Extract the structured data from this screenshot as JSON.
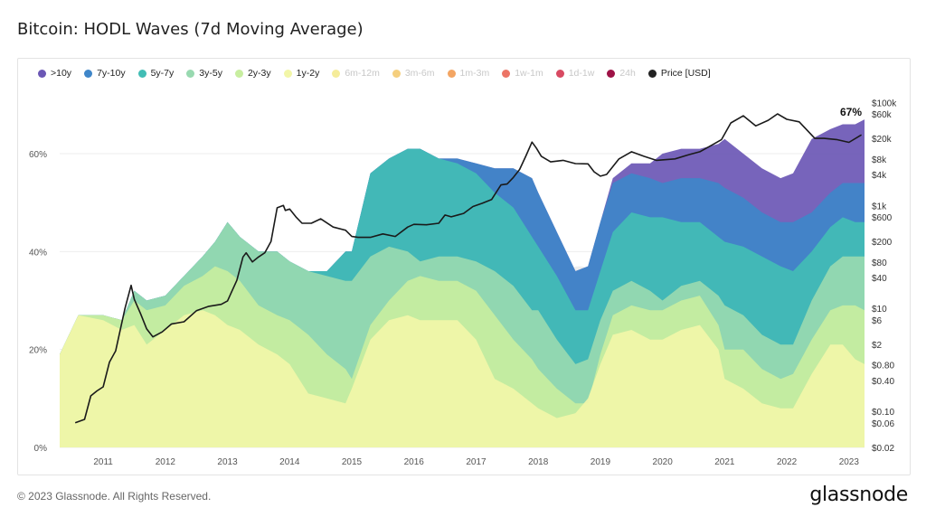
{
  "title": "Bitcoin: HODL Waves (7d Moving Average)",
  "footer": "© 2023 Glassnode. All Rights Reserved.",
  "brand": "glassnode",
  "watermark": "glassnode",
  "legend": [
    {
      "label": ">10y",
      "color": "#6b57b5",
      "active": true
    },
    {
      "label": "7y-10y",
      "color": "#3f86c9",
      "active": true
    },
    {
      "label": "5y-7y",
      "color": "#42bdb5",
      "active": true
    },
    {
      "label": "3y-5y",
      "color": "#98d9b0",
      "active": true
    },
    {
      "label": "2y-3y",
      "color": "#c8eea0",
      "active": true
    },
    {
      "label": "1y-2y",
      "color": "#f2f6a8",
      "active": true
    },
    {
      "label": "6m-12m",
      "color": "#f5ec9a",
      "active": false
    },
    {
      "label": "3m-6m",
      "color": "#f5cf7e",
      "active": false
    },
    {
      "label": "1m-3m",
      "color": "#f3a563",
      "active": false
    },
    {
      "label": "1w-1m",
      "color": "#ec7566",
      "active": false
    },
    {
      "label": "1d-1w",
      "color": "#d84a62",
      "active": false
    },
    {
      "label": "24h",
      "color": "#9e1246",
      "active": false
    },
    {
      "label": "Price [USD]",
      "color": "#222222",
      "active": true
    }
  ],
  "chart_data": {
    "type": "area",
    "stacked": true,
    "x_unit": "year",
    "x_ticks": [
      "2011",
      "2012",
      "2013",
      "2014",
      "2015",
      "2016",
      "2017",
      "2018",
      "2019",
      "2020",
      "2021",
      "2022",
      "2023"
    ],
    "xlim": [
      2010.3,
      2023.25
    ],
    "left_axis": {
      "ticks": [
        "0%",
        "20%",
        "40%",
        "60%"
      ],
      "ylim": [
        0,
        72
      ]
    },
    "right_axis": {
      "scale": "log",
      "ticks": [
        "$0.02",
        "$0.06",
        "$0.10",
        "$0.40",
        "$0.80",
        "$2",
        "$6",
        "$10",
        "$40",
        "$80",
        "$200",
        "$600",
        "$1k",
        "$4k",
        "$8k",
        "$20k",
        "$60k",
        "$100k"
      ],
      "tick_values": [
        0.02,
        0.06,
        0.1,
        0.4,
        0.8,
        2,
        6,
        10,
        40,
        80,
        200,
        600,
        1000,
        4000,
        8000,
        20000,
        60000,
        100000
      ],
      "ylim": [
        0.02,
        140000
      ]
    },
    "annotation": "67%",
    "band_x": [
      2010.3,
      2010.6,
      2011.0,
      2011.3,
      2011.5,
      2011.7,
      2012.0,
      2012.3,
      2012.6,
      2012.8,
      2013.0,
      2013.2,
      2013.5,
      2013.8,
      2014.0,
      2014.3,
      2014.6,
      2014.9,
      2015.0,
      2015.3,
      2015.6,
      2015.9,
      2016.1,
      2016.4,
      2016.7,
      2017.0,
      2017.3,
      2017.6,
      2017.9,
      2018.0,
      2018.3,
      2018.6,
      2018.8,
      2019.0,
      2019.2,
      2019.5,
      2019.8,
      2020.0,
      2020.3,
      2020.6,
      2020.9,
      2021.0,
      2021.3,
      2021.6,
      2021.9,
      2022.1,
      2022.4,
      2022.7,
      2022.9,
      2023.1,
      2023.25
    ],
    "series": [
      {
        "name": "1y-2y",
        "values": [
          19,
          27,
          26,
          24,
          25,
          21,
          24,
          27,
          28,
          27,
          25,
          24,
          21,
          19,
          17,
          11,
          10,
          9,
          12,
          22,
          26,
          27,
          26,
          26,
          26,
          22,
          14,
          12,
          9,
          8,
          6,
          7,
          10,
          17,
          23,
          24,
          22,
          22,
          24,
          25,
          20,
          14,
          12,
          9,
          8,
          8,
          15,
          21,
          21,
          18,
          17
        ]
      },
      {
        "name": "2y-3y",
        "values": [
          19,
          27,
          27,
          26,
          30,
          28,
          29,
          33,
          35,
          37,
          36,
          34,
          29,
          27,
          26,
          23,
          19,
          16,
          14,
          25,
          30,
          34,
          35,
          34,
          34,
          32,
          27,
          22,
          18,
          16,
          12,
          9,
          9,
          19,
          27,
          29,
          28,
          28,
          30,
          31,
          25,
          20,
          20,
          16,
          14,
          15,
          22,
          28,
          29,
          29,
          28
        ]
      },
      {
        "name": "3y-5y",
        "values": [
          19,
          27,
          27,
          26,
          32,
          30,
          31,
          35,
          39,
          42,
          46,
          43,
          40,
          40,
          38,
          36,
          35,
          34,
          34,
          39,
          41,
          40,
          38,
          39,
          39,
          38,
          36,
          33,
          28,
          28,
          22,
          17,
          18,
          26,
          32,
          34,
          32,
          30,
          33,
          34,
          31,
          29,
          27,
          23,
          21,
          21,
          30,
          37,
          39,
          39,
          39
        ]
      },
      {
        "name": "5y-7y",
        "values": [
          19,
          27,
          27,
          26,
          32,
          30,
          31,
          35,
          39,
          42,
          46,
          43,
          40,
          40,
          38,
          36,
          36,
          40,
          40,
          56,
          59,
          61,
          61,
          59,
          58,
          56,
          52,
          49,
          43,
          41,
          35,
          28,
          28,
          36,
          44,
          48,
          47,
          47,
          46,
          46,
          43,
          42,
          41,
          39,
          37,
          36,
          40,
          45,
          47,
          46,
          46
        ]
      },
      {
        "name": "7y-10y",
        "values": [
          19,
          27,
          27,
          26,
          32,
          30,
          31,
          35,
          39,
          42,
          46,
          43,
          40,
          40,
          38,
          36,
          36,
          40,
          40,
          56,
          59,
          61,
          61,
          59,
          59,
          58,
          57,
          57,
          55,
          52,
          44,
          36,
          37,
          46,
          54,
          56,
          55,
          54,
          55,
          55,
          54,
          53,
          51,
          48,
          46,
          46,
          48,
          52,
          54,
          54,
          54
        ]
      },
      {
        "name": ">10y",
        "values": [
          19,
          27,
          27,
          26,
          32,
          30,
          31,
          35,
          39,
          42,
          46,
          43,
          40,
          40,
          38,
          36,
          36,
          40,
          40,
          56,
          59,
          61,
          61,
          59,
          59,
          58,
          57,
          57,
          55,
          52,
          44,
          36,
          37,
          46,
          55,
          58,
          58,
          60,
          61,
          61,
          62,
          63,
          60,
          57,
          55,
          56,
          63,
          65,
          66,
          66,
          67
        ]
      },
      {
        "name": "Price [USD]",
        "x": [
          2010.55,
          2010.7,
          2010.8,
          2010.9,
          2011.0,
          2011.1,
          2011.2,
          2011.35,
          2011.45,
          2011.5,
          2011.6,
          2011.7,
          2011.8,
          2011.95,
          2012.1,
          2012.3,
          2012.5,
          2012.7,
          2012.9,
          2013.0,
          2013.15,
          2013.25,
          2013.3,
          2013.4,
          2013.5,
          2013.6,
          2013.7,
          2013.8,
          2013.9,
          2013.93,
          2014.0,
          2014.1,
          2014.2,
          2014.35,
          2014.5,
          2014.7,
          2014.9,
          2015.0,
          2015.1,
          2015.3,
          2015.5,
          2015.7,
          2015.9,
          2016.0,
          2016.2,
          2016.4,
          2016.5,
          2016.6,
          2016.8,
          2016.95,
          2017.1,
          2017.25,
          2017.4,
          2017.5,
          2017.6,
          2017.7,
          2017.8,
          2017.9,
          2017.97,
          2018.05,
          2018.2,
          2018.4,
          2018.6,
          2018.8,
          2018.9,
          2019.0,
          2019.1,
          2019.3,
          2019.5,
          2019.7,
          2019.9,
          2020.2,
          2020.4,
          2020.6,
          2020.8,
          2020.95,
          2021.1,
          2021.3,
          2021.5,
          2021.7,
          2021.85,
          2022.0,
          2022.2,
          2022.45,
          2022.6,
          2022.8,
          2023.0,
          2023.2
        ],
        "values": [
          0.06,
          0.07,
          0.2,
          0.25,
          0.3,
          0.9,
          1.5,
          10,
          28,
          15,
          8,
          4,
          2.8,
          3.5,
          5,
          5.5,
          9,
          11,
          12,
          14,
          35,
          100,
          120,
          80,
          100,
          120,
          200,
          900,
          1000,
          800,
          850,
          600,
          450,
          450,
          550,
          380,
          330,
          250,
          240,
          240,
          280,
          250,
          380,
          430,
          420,
          450,
          650,
          600,
          700,
          950,
          1100,
          1300,
          2500,
          2600,
          3500,
          5000,
          9000,
          17000,
          13000,
          9000,
          7000,
          7500,
          6500,
          6400,
          4500,
          3700,
          4000,
          8000,
          11000,
          9000,
          7500,
          8000,
          9500,
          11000,
          15000,
          19000,
          40000,
          55000,
          35000,
          45000,
          60000,
          47000,
          42000,
          20000,
          20000,
          19000,
          16800,
          23500
        ]
      }
    ]
  }
}
